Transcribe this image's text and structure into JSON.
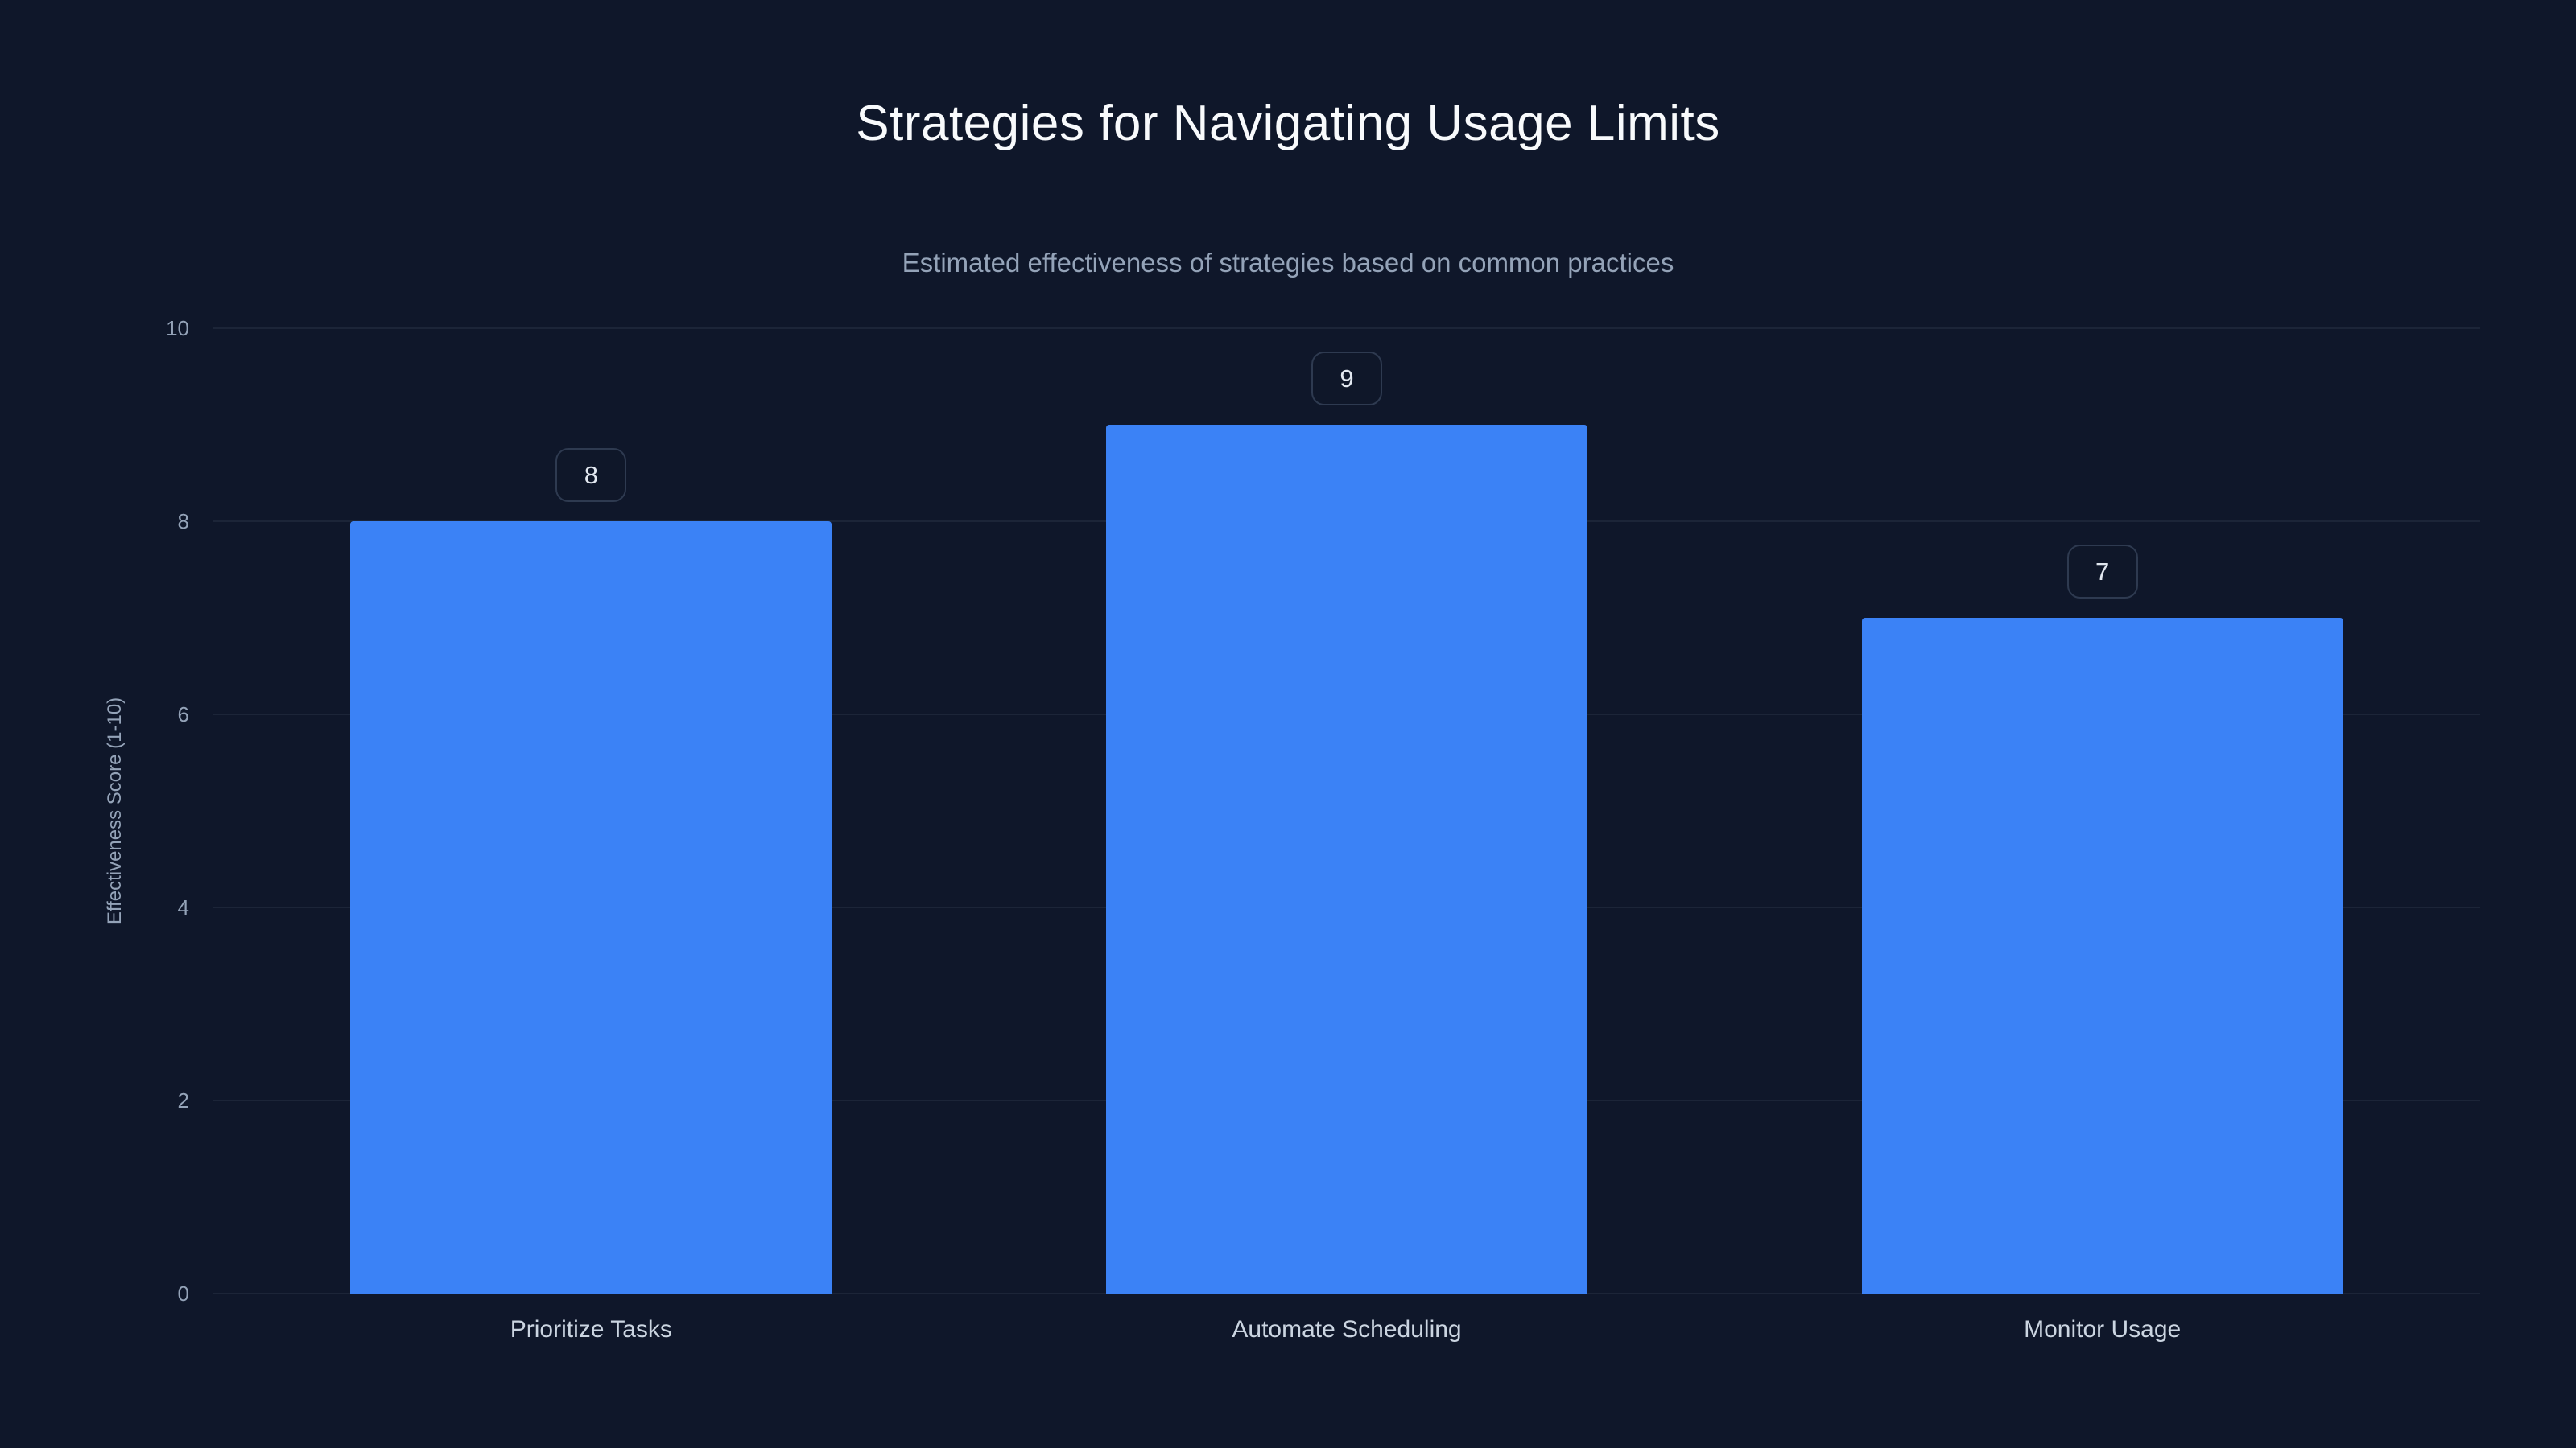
{
  "page": {
    "background": "#0f172a"
  },
  "chart_data": {
    "type": "bar",
    "title": "Strategies for Navigating Usage Limits",
    "subtitle": "Estimated effectiveness of strategies based on common practices",
    "categories": [
      "Prioritize Tasks",
      "Automate Scheduling",
      "Monitor Usage"
    ],
    "values": [
      8,
      9,
      7
    ],
    "xlabel": "",
    "ylabel": "Effectiveness Score (1-10)",
    "ylim": [
      0,
      10
    ],
    "yticks": [
      0,
      2,
      4,
      6,
      8,
      10
    ],
    "grid": true,
    "legend": false,
    "bar_color": "#3b82f6",
    "background_color": "#0f172a",
    "value_label_style": "rounded-badge-above-bar"
  }
}
